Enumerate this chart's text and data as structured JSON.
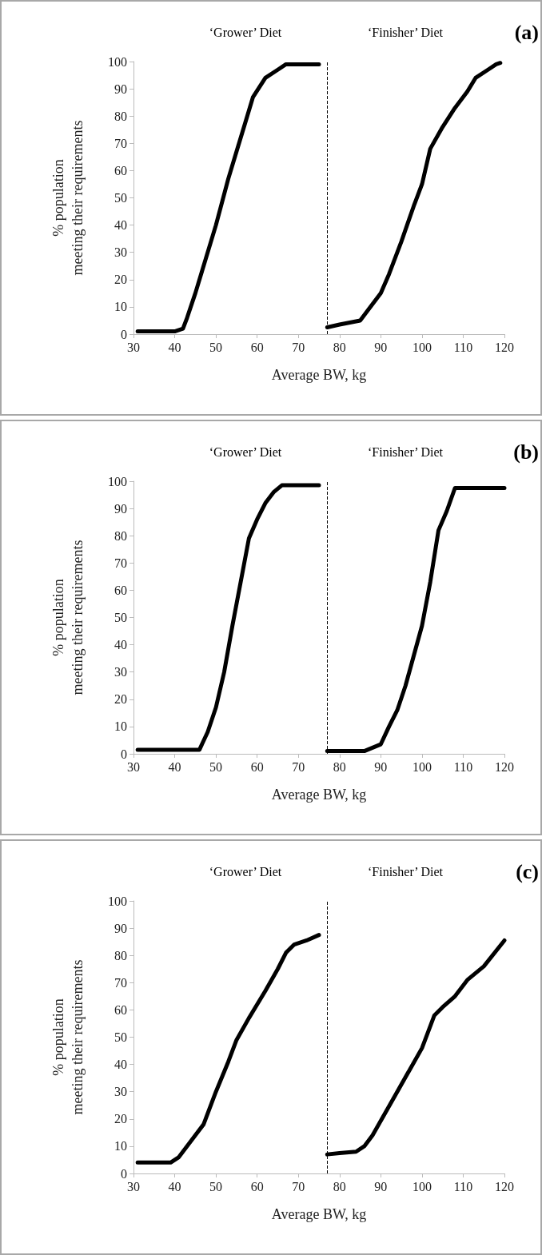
{
  "chart_data": [
    {
      "type": "line",
      "xlabel": "Average BW, kg",
      "ylabel": "% population\nmeeting their requirements",
      "annotations": [
        "‘Grower’ Diet",
        "‘Finisher’ Diet",
        "(a)"
      ],
      "xlim": [
        30,
        120
      ],
      "xticks": [
        30,
        40,
        50,
        60,
        70,
        80,
        90,
        100,
        110,
        120
      ],
      "ylim": [
        0,
        100
      ],
      "yticks": [
        0,
        10,
        20,
        30,
        40,
        50,
        60,
        70,
        80,
        90,
        100
      ],
      "grid": false,
      "marker": "none",
      "line_style": "solid",
      "ref_lines": [
        {
          "axis": "x",
          "value": 77,
          "line_style": "dashed",
          "color": "#000000"
        }
      ],
      "series": [
        {
          "color": "#000000",
          "x": [
            31,
            40,
            42,
            43,
            45,
            47,
            50,
            53,
            55,
            57,
            59,
            62,
            65,
            67,
            75
          ],
          "values": [
            1,
            1,
            2,
            6,
            15,
            25,
            40,
            57,
            67,
            77,
            87,
            94,
            97,
            99,
            99
          ]
        },
        {
          "color": "#000000",
          "x": [
            77,
            80,
            85,
            87,
            90,
            92,
            95,
            98,
            100,
            102,
            105,
            108,
            111,
            113,
            116,
            118,
            119
          ],
          "values": [
            2.5,
            3.5,
            5,
            9,
            15,
            22,
            34,
            47,
            55,
            68,
            76,
            83,
            89,
            94,
            97,
            99,
            99.5
          ]
        }
      ]
    },
    {
      "type": "line",
      "xlabel": "Average BW, kg",
      "ylabel": "% population\nmeeting their requirements",
      "annotations": [
        "‘Grower’ Diet",
        "‘Finisher’ Diet",
        "(b)"
      ],
      "xlim": [
        30,
        120
      ],
      "xticks": [
        30,
        40,
        50,
        60,
        70,
        80,
        90,
        100,
        110,
        120
      ],
      "ylim": [
        0,
        100
      ],
      "yticks": [
        0,
        10,
        20,
        30,
        40,
        50,
        60,
        70,
        80,
        90,
        100
      ],
      "grid": false,
      "marker": "none",
      "line_style": "solid",
      "ref_lines": [
        {
          "axis": "x",
          "value": 77,
          "line_style": "dashed",
          "color": "#000000"
        }
      ],
      "series": [
        {
          "color": "#000000",
          "x": [
            31,
            46,
            48,
            50,
            52,
            54,
            56,
            58,
            60,
            62,
            64,
            66,
            75
          ],
          "values": [
            1.5,
            1.5,
            8,
            17,
            30,
            47,
            63,
            79,
            86,
            92,
            96,
            98.5,
            98.5
          ]
        },
        {
          "color": "#000000",
          "x": [
            77,
            86,
            90,
            92,
            94,
            96,
            98,
            100,
            102,
            104,
            106,
            108,
            120
          ],
          "values": [
            1,
            1,
            3.5,
            10,
            16,
            25,
            36,
            47,
            63,
            82,
            89,
            97.5,
            97.5
          ]
        }
      ]
    },
    {
      "type": "line",
      "xlabel": "Average BW, kg",
      "ylabel": "% population\nmeeting their requirements",
      "annotations": [
        "‘Grower’ Diet",
        "‘Finisher’ Diet",
        "(c)"
      ],
      "xlim": [
        30,
        120
      ],
      "xticks": [
        30,
        40,
        50,
        60,
        70,
        80,
        90,
        100,
        110,
        120
      ],
      "ylim": [
        0,
        100
      ],
      "yticks": [
        0,
        10,
        20,
        30,
        40,
        50,
        60,
        70,
        80,
        90,
        100
      ],
      "grid": false,
      "marker": "none",
      "line_style": "solid",
      "ref_lines": [
        {
          "axis": "x",
          "value": 77,
          "line_style": "dashed",
          "color": "#000000"
        }
      ],
      "series": [
        {
          "color": "#000000",
          "x": [
            31,
            39,
            41,
            44,
            47,
            50,
            53,
            55,
            58,
            62,
            65,
            67,
            69,
            72,
            75
          ],
          "values": [
            4,
            4,
            6,
            12,
            18,
            30,
            41,
            49,
            57,
            67,
            75,
            81,
            84,
            85.5,
            87.5
          ]
        },
        {
          "color": "#000000",
          "x": [
            77,
            80,
            84,
            86,
            88,
            91,
            94,
            97,
            100,
            103,
            105,
            108,
            111,
            115,
            120
          ],
          "values": [
            7,
            7.5,
            8,
            10,
            14,
            22,
            30,
            38,
            46,
            58,
            61,
            65,
            71,
            76,
            85.5
          ]
        }
      ]
    }
  ]
}
